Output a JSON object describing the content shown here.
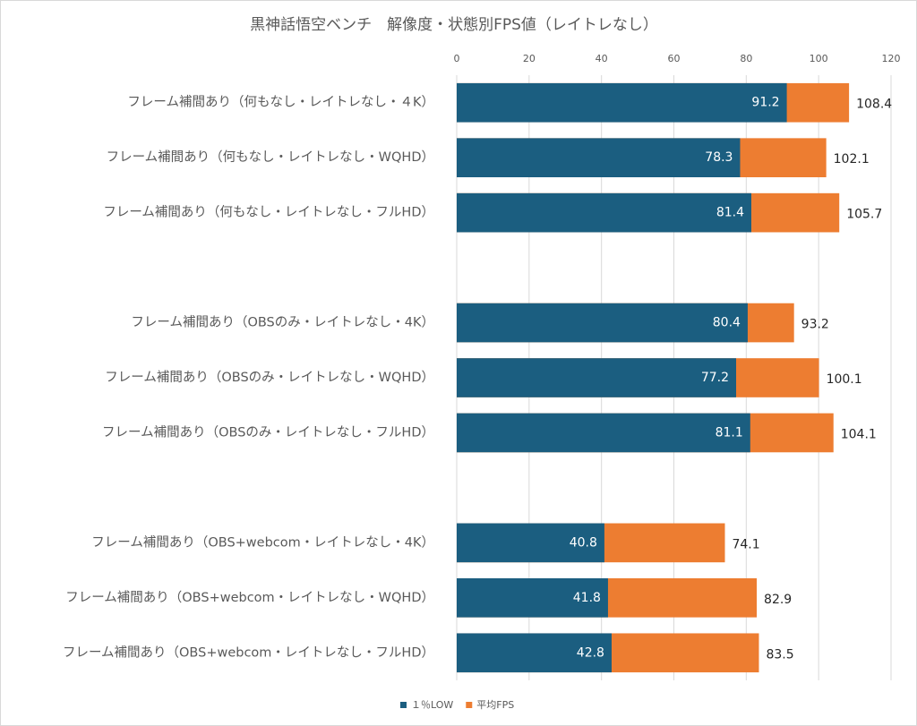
{
  "chart_data": {
    "type": "bar",
    "orientation": "horizontal",
    "overlap": true,
    "title": "黒神話悟空ベンチ　解像度・状態別FPS値（レイトレなし）",
    "categories": [
      "フレーム補間あり（何もなし・レイトレなし・４K）",
      "フレーム補間あり（何もなし・レイトレなし・WQHD）",
      "フレーム補間あり（何もなし・レイトレなし・フルHD）",
      null,
      "フレーム補間あり（OBSのみ・レイトレなし・4K）",
      "フレーム補間あり（OBSのみ・レイトレなし・WQHD）",
      "フレーム補間あり（OBSのみ・レイトレなし・フルHD）",
      null,
      "フレーム補間あり（OBS+webcom・レイトレなし・4K）",
      "フレーム補間あり（OBS+webcom・レイトレなし・WQHD）",
      "フレーム補間あり（OBS+webcom・レイトレなし・フルHD）"
    ],
    "series": [
      {
        "name": "１％LOW",
        "color": "#1b5e80",
        "values": [
          91.2,
          78.3,
          81.4,
          null,
          80.4,
          77.2,
          81.1,
          null,
          40.8,
          41.8,
          42.8
        ]
      },
      {
        "name": "平均FPS",
        "color": "#ed7d31",
        "values": [
          108.4,
          102.1,
          105.7,
          null,
          93.2,
          100.1,
          104.1,
          null,
          74.1,
          82.9,
          83.5
        ]
      }
    ],
    "xlim": [
      0,
      120
    ],
    "xticks": [
      0,
      20,
      40,
      60,
      80,
      100,
      120
    ],
    "grid": true,
    "legend": "bottom"
  }
}
